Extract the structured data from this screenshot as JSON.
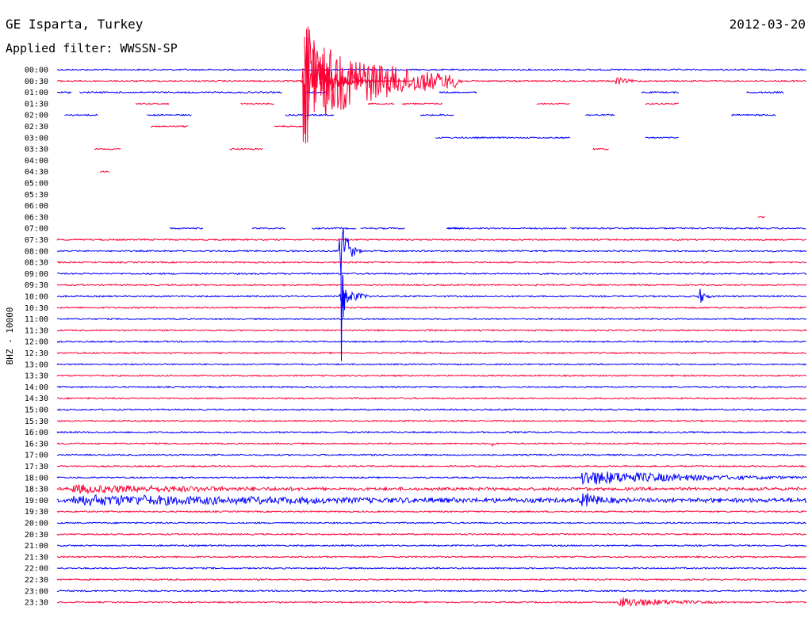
{
  "header": {
    "station": "GE Isparta, Turkey",
    "date": "2012-03-20",
    "filter": "Applied filter: WWSSN-SP"
  },
  "chart_data": {
    "type": "line",
    "title": "GE Isparta, Turkey",
    "subtitle": "Applied filter: WWSSN-SP",
    "date": "2012-03-20",
    "ylabel": "BHZ - 10000",
    "row_labels": [
      "00:00",
      "00:30",
      "01:00",
      "01:30",
      "02:00",
      "02:30",
      "03:00",
      "03:30",
      "04:00",
      "04:30",
      "05:00",
      "05:30",
      "06:00",
      "06:30",
      "07:00",
      "07:30",
      "08:00",
      "08:30",
      "09:00",
      "09:30",
      "10:00",
      "10:30",
      "11:00",
      "11:30",
      "12:00",
      "12:30",
      "13:00",
      "13:30",
      "14:00",
      "14:30",
      "15:00",
      "15:30",
      "16:00",
      "16:30",
      "17:00",
      "17:30",
      "18:00",
      "18:30",
      "19:00",
      "19:30",
      "20:00",
      "20:30",
      "21:00",
      "21:30",
      "22:00",
      "22:30",
      "23:00",
      "23:30"
    ],
    "row_minutes": 30,
    "trace_colors": [
      "#0000ff",
      "#ff0033"
    ],
    "grid": false
  }
}
